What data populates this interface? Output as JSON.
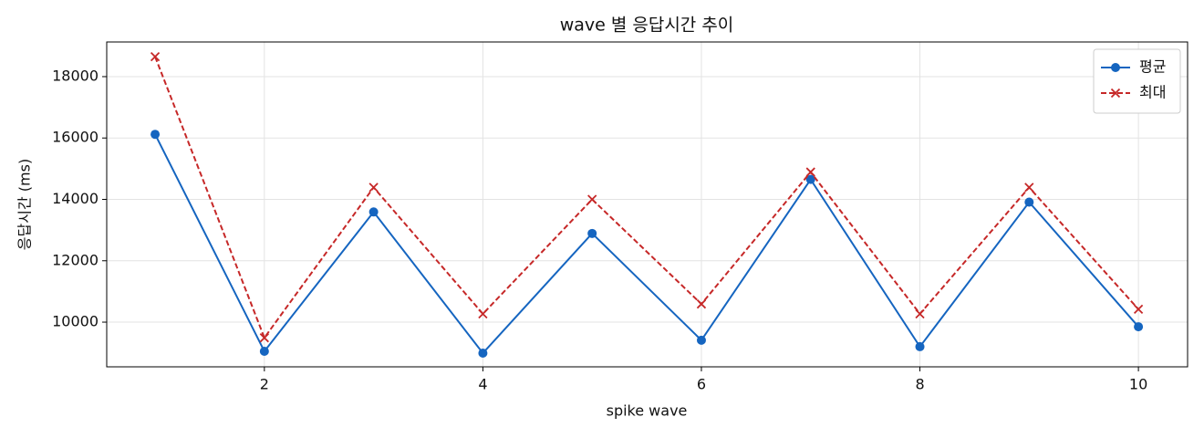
{
  "chart_data": {
    "type": "line",
    "title": "wave 별 응답시간 추이",
    "xlabel": "spike wave",
    "ylabel": "응답시간 (ms)",
    "x": [
      1,
      2,
      3,
      4,
      5,
      6,
      7,
      8,
      9,
      10
    ],
    "series": [
      {
        "name": "평균",
        "color": "#1565c0",
        "marker": "circle",
        "linestyle": "solid",
        "values": [
          16120,
          9050,
          13590,
          8990,
          12890,
          9410,
          14650,
          9200,
          13910,
          9850
        ]
      },
      {
        "name": "최대",
        "color": "#c62828",
        "marker": "x",
        "linestyle": "dashed",
        "values": [
          18650,
          9490,
          14390,
          10270,
          14000,
          10590,
          14890,
          10270,
          14390,
          10420
        ]
      }
    ],
    "xlim": [
      0.557,
      10.45
    ],
    "ylim": [
      8544,
      19129
    ],
    "xticks": [
      2,
      4,
      6,
      8,
      10
    ],
    "yticks": [
      10000,
      12000,
      14000,
      16000,
      18000
    ],
    "grid": true,
    "legend": "upper right"
  }
}
